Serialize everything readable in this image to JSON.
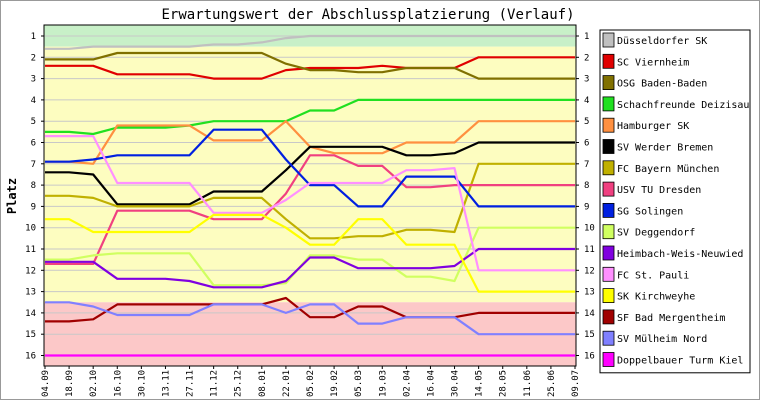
{
  "chart_data": {
    "type": "line",
    "title": "Erwartungswert der Abschlussplatzierung (Verlauf)",
    "ylabel": "Platz",
    "xlabel": "",
    "ylim": [
      1,
      16
    ],
    "y_inverted": true,
    "y_ticks": [
      "1",
      "2",
      "3",
      "4",
      "5",
      "6",
      "7",
      "8",
      "9",
      "10",
      "11",
      "12",
      "13",
      "14",
      "15",
      "16"
    ],
    "categories": [
      "04.09",
      "18.09",
      "02.10",
      "16.10",
      "30.10",
      "13.11",
      "27.11",
      "11.12",
      "25.12",
      "08.01",
      "22.01",
      "05.02",
      "19.02",
      "05.03",
      "19.03",
      "02.04",
      "16.04",
      "30.04",
      "14.05",
      "28.05",
      "11.06",
      "25.06",
      "09.07"
    ],
    "bands": [
      {
        "name": "promotion",
        "from": 0.5,
        "to": 1.5,
        "color": "#c8f0c8"
      },
      {
        "name": "middle",
        "from": 1.5,
        "to": 13.5,
        "color": "#fdfdc0"
      },
      {
        "name": "relegation",
        "from": 13.5,
        "to": 16.5,
        "color": "#fcc8c8"
      }
    ],
    "legend_position": "right",
    "series": [
      {
        "name": "Düsseldorfer SK",
        "color": "#c0c0c0",
        "values": [
          1.6,
          1.6,
          1.5,
          1.5,
          1.5,
          1.5,
          1.5,
          1.4,
          1.4,
          1.3,
          1.1,
          1.0,
          1.0,
          1.0,
          1.0,
          1.0,
          1.0,
          1.0,
          1.0,
          1.0,
          1.0,
          1.0,
          1.0
        ]
      },
      {
        "name": "SC Viernheim",
        "color": "#e00000",
        "values": [
          2.4,
          2.4,
          2.4,
          2.8,
          2.8,
          2.8,
          2.8,
          3.0,
          3.0,
          3.0,
          2.6,
          2.5,
          2.5,
          2.5,
          2.4,
          2.5,
          2.5,
          2.5,
          2.0,
          2.0,
          2.0,
          2.0,
          2.0
        ]
      },
      {
        "name": "OSG Baden-Baden",
        "color": "#807000",
        "values": [
          2.1,
          2.1,
          2.1,
          1.8,
          1.8,
          1.8,
          1.8,
          1.8,
          1.8,
          1.8,
          2.3,
          2.6,
          2.6,
          2.7,
          2.7,
          2.5,
          2.5,
          2.5,
          3.0,
          3.0,
          3.0,
          3.0,
          3.0
        ]
      },
      {
        "name": "Schachfreunde Deizisau",
        "color": "#20e020",
        "values": [
          5.5,
          5.5,
          5.6,
          5.3,
          5.3,
          5.3,
          5.2,
          5.0,
          5.0,
          5.0,
          5.0,
          4.5,
          4.5,
          4.0,
          4.0,
          4.0,
          4.0,
          4.0,
          4.0,
          4.0,
          4.0,
          4.0,
          4.0
        ]
      },
      {
        "name": "Hamburger SK",
        "color": "#ff9040",
        "values": [
          6.9,
          6.9,
          7.0,
          5.2,
          5.2,
          5.2,
          5.2,
          5.9,
          5.9,
          5.9,
          5.0,
          6.2,
          6.5,
          6.5,
          6.5,
          6.0,
          6.0,
          6.0,
          5.0,
          5.0,
          5.0,
          5.0,
          5.0
        ]
      },
      {
        "name": "SV Werder Bremen",
        "color": "#000000",
        "values": [
          7.4,
          7.4,
          7.5,
          8.9,
          8.9,
          8.9,
          8.9,
          8.3,
          8.3,
          8.3,
          7.3,
          6.2,
          6.2,
          6.2,
          6.2,
          6.6,
          6.6,
          6.5,
          6.0,
          6.0,
          6.0,
          6.0,
          6.0
        ]
      },
      {
        "name": "FC Bayern München",
        "color": "#c0b000",
        "values": [
          8.5,
          8.5,
          8.6,
          9.0,
          9.0,
          9.0,
          9.0,
          8.6,
          8.6,
          8.6,
          9.6,
          10.5,
          10.5,
          10.4,
          10.4,
          10.1,
          10.1,
          10.2,
          7.0,
          7.0,
          7.0,
          7.0,
          7.0
        ]
      },
      {
        "name": "USV TU Dresden",
        "color": "#f04080",
        "values": [
          11.7,
          11.7,
          11.7,
          9.2,
          9.2,
          9.2,
          9.2,
          9.6,
          9.6,
          9.6,
          8.4,
          6.6,
          6.6,
          7.1,
          7.1,
          8.1,
          8.1,
          8.0,
          8.0,
          8.0,
          8.0,
          8.0,
          8.0
        ]
      },
      {
        "name": "SG Solingen",
        "color": "#0020e0",
        "values": [
          6.9,
          6.9,
          6.8,
          6.6,
          6.6,
          6.6,
          6.6,
          5.4,
          5.4,
          5.4,
          6.8,
          8.0,
          8.0,
          9.0,
          9.0,
          7.6,
          7.6,
          7.6,
          9.0,
          9.0,
          9.0,
          9.0,
          9.0
        ]
      },
      {
        "name": "SV Deggendorf",
        "color": "#d0ff60",
        "values": [
          11.5,
          11.5,
          11.3,
          11.2,
          11.2,
          11.2,
          11.2,
          12.7,
          12.7,
          12.7,
          12.6,
          11.3,
          11.3,
          11.5,
          11.5,
          12.3,
          12.3,
          12.5,
          10.0,
          10.0,
          10.0,
          10.0,
          10.0
        ]
      },
      {
        "name": "Heimbach-Weis-Neuwied",
        "color": "#8000e0",
        "values": [
          11.6,
          11.6,
          11.6,
          12.4,
          12.4,
          12.4,
          12.5,
          12.8,
          12.8,
          12.8,
          12.5,
          11.4,
          11.4,
          11.9,
          11.9,
          11.9,
          11.9,
          11.8,
          11.0,
          11.0,
          11.0,
          11.0,
          11.0
        ]
      },
      {
        "name": "FC St. Pauli",
        "color": "#ff90ff",
        "values": [
          5.7,
          5.7,
          5.7,
          7.9,
          7.9,
          7.9,
          7.9,
          9.3,
          9.3,
          9.3,
          8.7,
          7.9,
          7.9,
          7.9,
          7.9,
          7.3,
          7.3,
          7.2,
          12.0,
          12.0,
          12.0,
          12.0,
          12.0
        ]
      },
      {
        "name": "SK Kirchweyhe",
        "color": "#ffff00",
        "values": [
          9.6,
          9.6,
          10.2,
          10.2,
          10.2,
          10.2,
          10.2,
          9.4,
          9.4,
          9.4,
          10.0,
          10.8,
          10.8,
          9.6,
          9.6,
          10.8,
          10.8,
          10.8,
          13.0,
          13.0,
          13.0,
          13.0,
          13.0
        ]
      },
      {
        "name": "SF Bad Mergentheim",
        "color": "#a00000",
        "values": [
          14.4,
          14.4,
          14.3,
          13.6,
          13.6,
          13.6,
          13.6,
          13.6,
          13.6,
          13.6,
          13.3,
          14.2,
          14.2,
          13.7,
          13.7,
          14.2,
          14.2,
          14.2,
          14.0,
          14.0,
          14.0,
          14.0,
          14.0
        ]
      },
      {
        "name": "SV Mülheim Nord",
        "color": "#8080ff",
        "values": [
          13.5,
          13.5,
          13.7,
          14.1,
          14.1,
          14.1,
          14.1,
          13.6,
          13.6,
          13.6,
          14.0,
          13.6,
          13.6,
          14.5,
          14.5,
          14.2,
          14.2,
          14.2,
          15.0,
          15.0,
          15.0,
          15.0,
          15.0
        ]
      },
      {
        "name": "Doppelbauer Turm Kiel",
        "color": "#ff00ff",
        "values": [
          16,
          16,
          16,
          16,
          16,
          16,
          16,
          16,
          16,
          16,
          16,
          16,
          16,
          16,
          16,
          16,
          16,
          16,
          16,
          16,
          16,
          16,
          16
        ]
      }
    ]
  }
}
